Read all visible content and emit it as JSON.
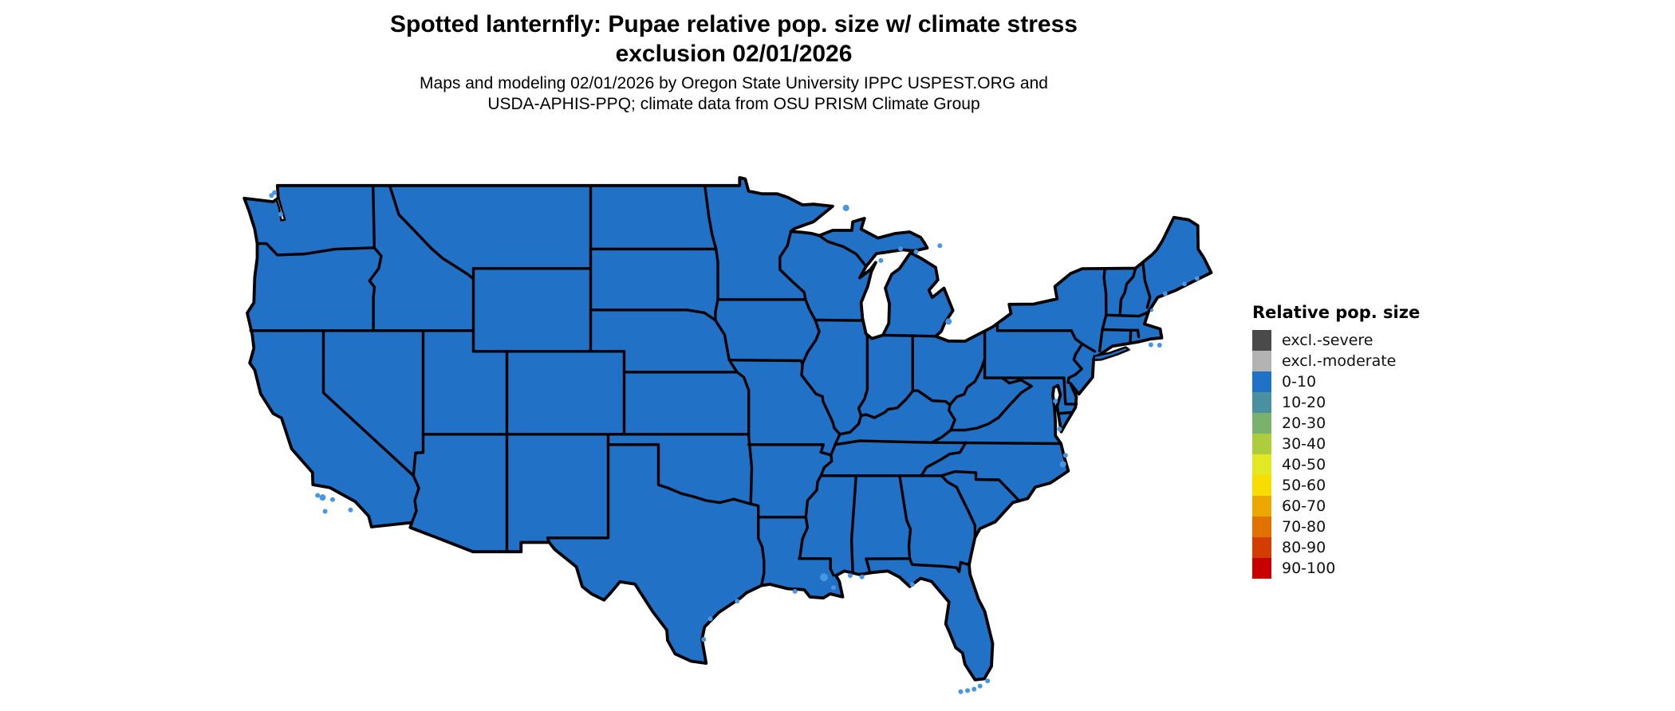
{
  "title": {
    "line1": "Spotted lanternfly: Pupae relative pop. size w/ climate stress",
    "line2": "exclusion 02/01/2026"
  },
  "subtitle": {
    "line1": "Maps and modeling 02/01/2026 by Oregon State University IPPC USPEST.ORG and",
    "line2": "USDA-APHIS-PPQ; climate data from OSU PRISM Climate Group"
  },
  "legend": {
    "title": "Relative pop. size",
    "items": [
      {
        "label": "excl.-severe",
        "color": "#4a4a4a"
      },
      {
        "label": "excl.-moderate",
        "color": "#b3b3b3"
      },
      {
        "label": "0-10",
        "color": "#2171c7"
      },
      {
        "label": "10-20",
        "color": "#4a90a0"
      },
      {
        "label": "20-30",
        "color": "#79b26c"
      },
      {
        "label": "30-40",
        "color": "#aecd3c"
      },
      {
        "label": "40-50",
        "color": "#e2e821"
      },
      {
        "label": "50-60",
        "color": "#f7dd00"
      },
      {
        "label": "60-70",
        "color": "#eca800"
      },
      {
        "label": "70-80",
        "color": "#e27200"
      },
      {
        "label": "80-90",
        "color": "#d43d00"
      },
      {
        "label": "90-100",
        "color": "#c90000"
      }
    ]
  },
  "map": {
    "kind": "choropleth-us-contiguous-states",
    "uniform_category": "0-10",
    "fill_color": "#2171c7",
    "island_color": "#4795e3",
    "border_color": "#000000",
    "background": "#ffffff"
  }
}
